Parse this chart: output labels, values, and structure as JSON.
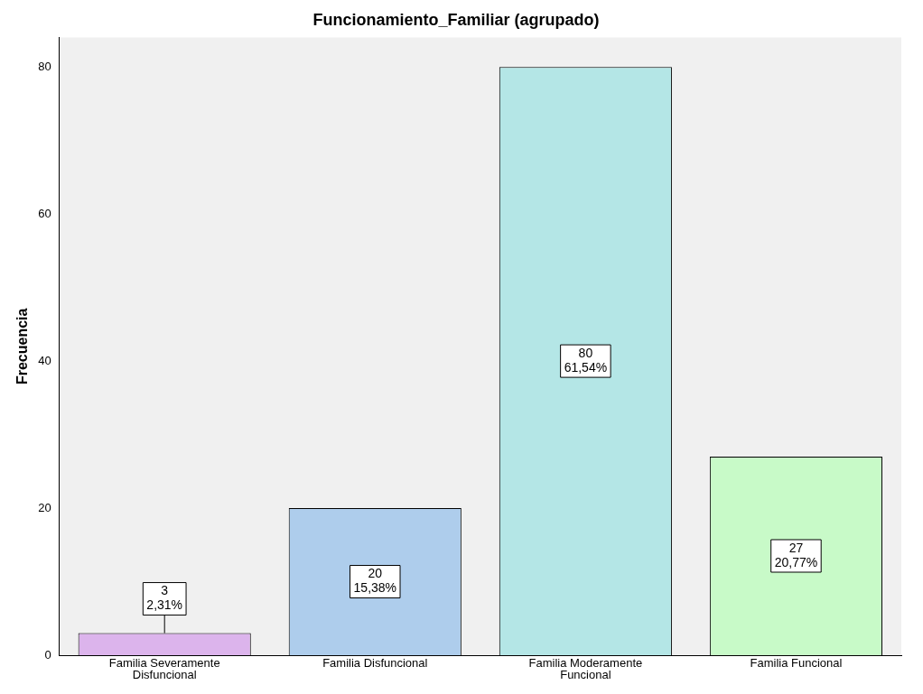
{
  "chart_data": {
    "type": "bar",
    "title": "Funcionamiento_Familiar (agrupado)",
    "ylabel": "Frecuencia",
    "categories": [
      "Familia Severamente Disfuncional",
      "Familia Disfuncional",
      "Familia Moderamente Funcional",
      "Familia Funcional"
    ],
    "values": [
      3,
      20,
      80,
      27
    ],
    "colors": [
      "#dcb4ec",
      "#aecdec",
      "#b4e6e6",
      "#c8fac8"
    ],
    "value_labels": [
      "3\n2,31%",
      "20\n15,38%",
      "80\n61,54%",
      "27\n20,77%"
    ],
    "ylim": [
      0,
      84
    ],
    "yticks": [
      0,
      20,
      40,
      60,
      80
    ],
    "grid": false,
    "legend": false
  }
}
